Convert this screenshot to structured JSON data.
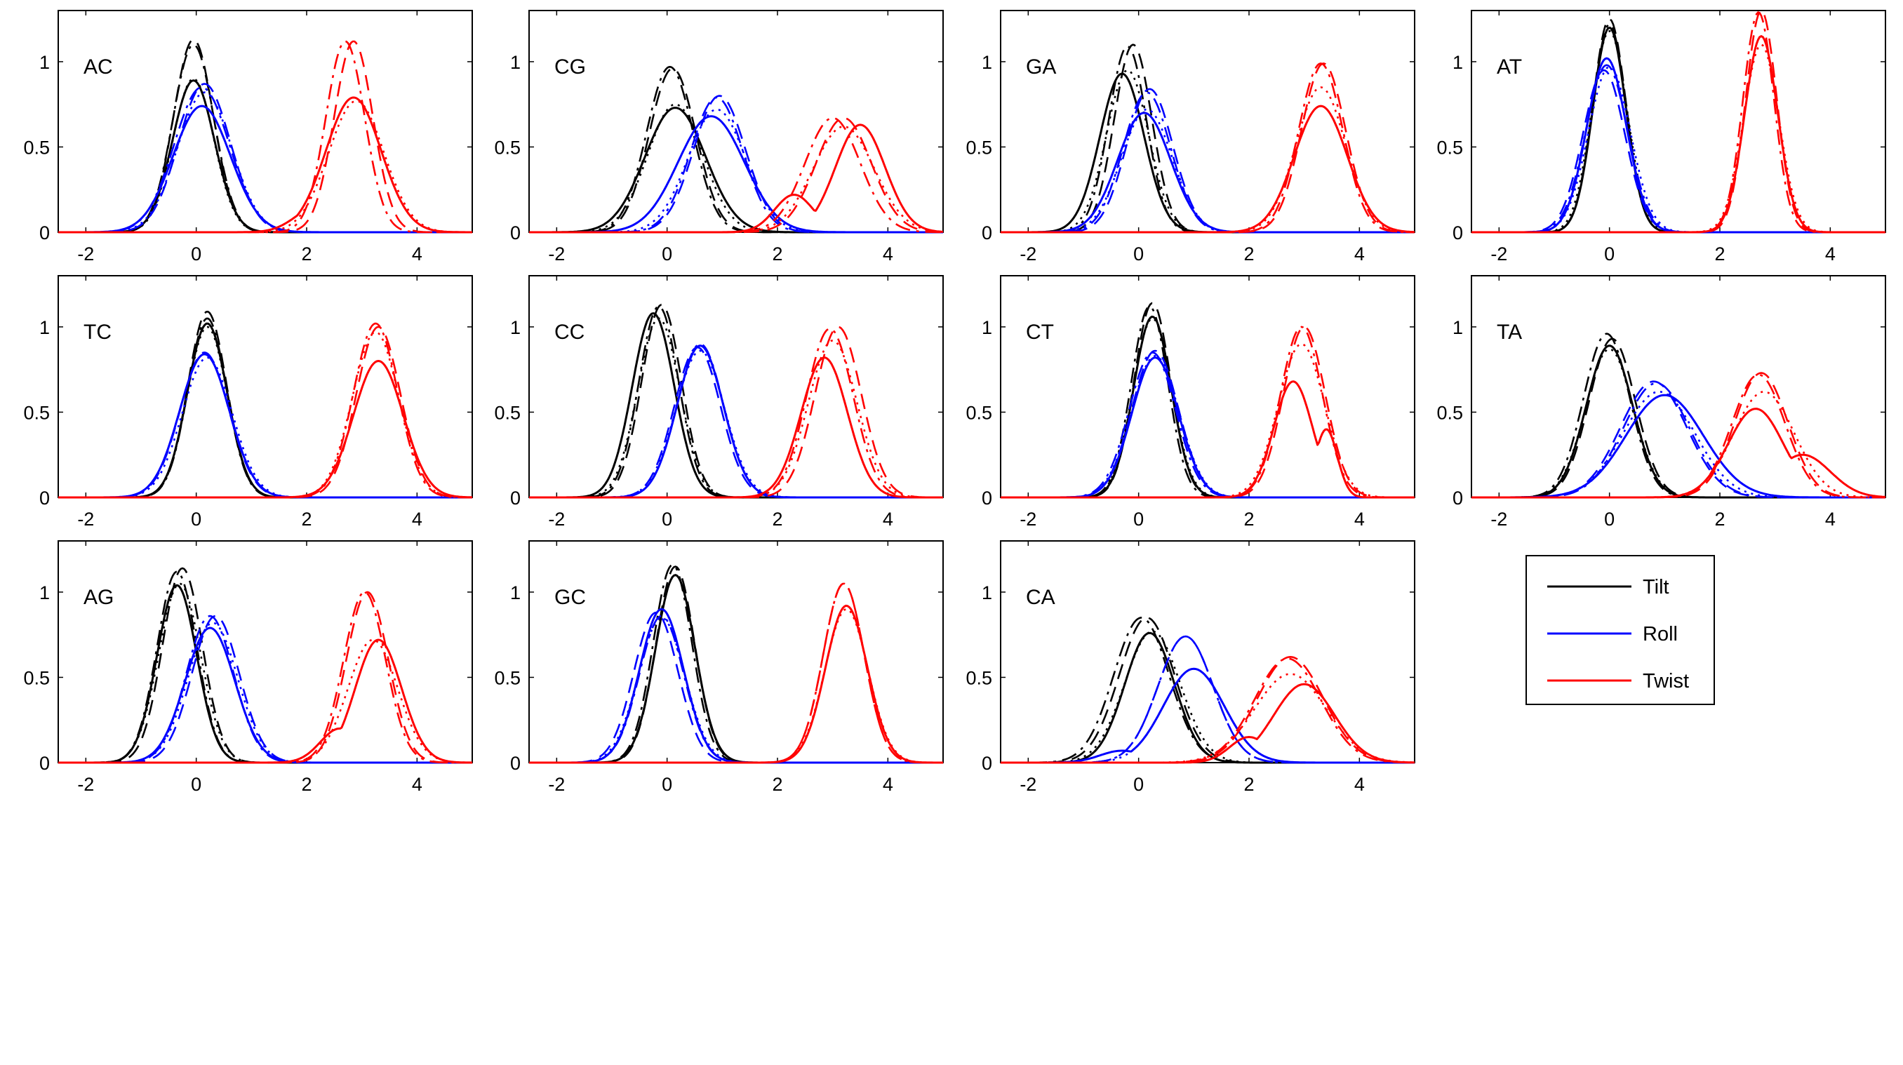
{
  "chart_data": {
    "type": "line",
    "description_axes": {
      "xlim": [
        -2.5,
        5
      ],
      "ylim": [
        0,
        1.3
      ],
      "xticks": [
        -2,
        0,
        2,
        4
      ],
      "yticks": [
        0,
        0.5,
        1
      ],
      "xtick_labels": [
        "-2",
        "0",
        "2",
        "4"
      ],
      "ytick_labels": [
        "0",
        "0.5",
        "1"
      ],
      "grid": false
    },
    "colors": {
      "Tilt": "#000000",
      "Roll": "#0000ff",
      "Twist": "#ff0000"
    },
    "line_styles": [
      "solid",
      "dashed",
      "dashdot",
      "dotted"
    ],
    "legend": {
      "entries": [
        "Tilt",
        "Roll",
        "Twist"
      ],
      "placement": "grid position row 3, column 4"
    },
    "panels": [
      {
        "label": "AC",
        "Tilt": [
          {
            "c": -0.05,
            "s": 0.38,
            "h": 0.89
          },
          {
            "c": -0.05,
            "s": 0.36,
            "h": 1.13
          },
          {
            "c": -0.05,
            "s": 0.37,
            "h": 1.1
          },
          {
            "c": -0.05,
            "s": 0.37,
            "h": 0.9
          }
        ],
        "Roll": [
          {
            "c": 0.1,
            "s": 0.52,
            "h": 0.74
          },
          {
            "c": 0.15,
            "s": 0.47,
            "h": 0.87
          },
          {
            "c": 0.1,
            "s": 0.5,
            "h": 0.85
          },
          {
            "c": 0.15,
            "s": 0.49,
            "h": 0.82
          }
        ],
        "Twist": [
          {
            "c": 2.85,
            "s": 0.5,
            "h": 0.79,
            "sh": {
              "c": 2.2,
              "s": 0.4,
              "h": 0.15
            }
          },
          {
            "c": 2.85,
            "s": 0.35,
            "h": 1.12
          },
          {
            "c": 2.7,
            "s": 0.35,
            "h": 1.12
          },
          {
            "c": 2.9,
            "s": 0.5,
            "h": 0.77
          }
        ]
      },
      {
        "label": "CG",
        "Tilt": [
          {
            "c": 0.15,
            "s": 0.55,
            "h": 0.73
          },
          {
            "c": 0.1,
            "s": 0.42,
            "h": 0.96
          },
          {
            "c": 0.05,
            "s": 0.42,
            "h": 0.97
          },
          {
            "c": 0.15,
            "s": 0.5,
            "h": 0.75
          }
        ],
        "Roll": [
          {
            "c": 0.8,
            "s": 0.6,
            "h": 0.68
          },
          {
            "c": 0.95,
            "s": 0.47,
            "h": 0.8
          },
          {
            "c": 0.9,
            "s": 0.47,
            "h": 0.79
          },
          {
            "c": 0.9,
            "s": 0.52,
            "h": 0.72
          }
        ],
        "Twist": [
          {
            "c": 3.5,
            "s": 0.45,
            "h": 0.63,
            "sh": {
              "c": 2.3,
              "s": 0.35,
              "h": 0.22
            }
          },
          {
            "c": 3.2,
            "s": 0.5,
            "h": 0.67
          },
          {
            "c": 3.0,
            "s": 0.5,
            "h": 0.67
          },
          {
            "c": 3.2,
            "s": 0.55,
            "h": 0.62
          }
        ]
      },
      {
        "label": "GA",
        "Tilt": [
          {
            "c": -0.3,
            "s": 0.4,
            "h": 0.93
          },
          {
            "c": -0.1,
            "s": 0.34,
            "h": 1.1
          },
          {
            "c": -0.2,
            "s": 0.34,
            "h": 1.09
          },
          {
            "c": -0.2,
            "s": 0.38,
            "h": 0.95
          }
        ],
        "Roll": [
          {
            "c": 0.1,
            "s": 0.48,
            "h": 0.7
          },
          {
            "c": 0.2,
            "s": 0.42,
            "h": 0.84
          },
          {
            "c": 0.15,
            "s": 0.43,
            "h": 0.82
          },
          {
            "c": 0.15,
            "s": 0.46,
            "h": 0.72
          }
        ],
        "Twist": [
          {
            "c": 3.3,
            "s": 0.48,
            "h": 0.74
          },
          {
            "c": 3.35,
            "s": 0.4,
            "h": 0.99
          },
          {
            "c": 3.3,
            "s": 0.4,
            "h": 0.99
          },
          {
            "c": 3.3,
            "s": 0.45,
            "h": 0.85
          }
        ]
      },
      {
        "label": "AT",
        "Tilt": [
          {
            "c": 0.0,
            "s": 0.3,
            "h": 1.2
          },
          {
            "c": 0.0,
            "s": 0.3,
            "h": 1.25
          },
          {
            "c": 0.0,
            "s": 0.3,
            "h": 1.22
          },
          {
            "c": 0.0,
            "s": 0.32,
            "h": 1.18
          }
        ],
        "Roll": [
          {
            "c": -0.05,
            "s": 0.36,
            "h": 1.02
          },
          {
            "c": -0.1,
            "s": 0.38,
            "h": 0.95
          },
          {
            "c": -0.05,
            "s": 0.38,
            "h": 0.98
          },
          {
            "c": 0.0,
            "s": 0.38,
            "h": 0.97
          }
        ],
        "Twist": [
          {
            "c": 2.75,
            "s": 0.3,
            "h": 1.15
          },
          {
            "c": 2.75,
            "s": 0.28,
            "h": 1.3
          },
          {
            "c": 2.7,
            "s": 0.28,
            "h": 1.29
          },
          {
            "c": 2.75,
            "s": 0.32,
            "h": 1.1
          }
        ]
      },
      {
        "label": "TC",
        "Tilt": [
          {
            "c": 0.2,
            "s": 0.36,
            "h": 1.02
          },
          {
            "c": 0.2,
            "s": 0.35,
            "h": 1.09
          },
          {
            "c": 0.2,
            "s": 0.35,
            "h": 1.05
          },
          {
            "c": 0.2,
            "s": 0.36,
            "h": 1.0
          }
        ],
        "Roll": [
          {
            "c": 0.15,
            "s": 0.45,
            "h": 0.84
          },
          {
            "c": 0.15,
            "s": 0.44,
            "h": 0.85
          },
          {
            "c": 0.15,
            "s": 0.45,
            "h": 0.84
          },
          {
            "c": 0.2,
            "s": 0.45,
            "h": 0.82
          }
        ],
        "Twist": [
          {
            "c": 3.3,
            "s": 0.45,
            "h": 0.8
          },
          {
            "c": 3.3,
            "s": 0.4,
            "h": 1.0
          },
          {
            "c": 3.25,
            "s": 0.4,
            "h": 1.02
          },
          {
            "c": 3.25,
            "s": 0.42,
            "h": 0.97
          }
        ]
      },
      {
        "label": "CC",
        "Tilt": [
          {
            "c": -0.25,
            "s": 0.38,
            "h": 1.08
          },
          {
            "c": -0.1,
            "s": 0.36,
            "h": 1.13
          },
          {
            "c": -0.15,
            "s": 0.36,
            "h": 1.12
          },
          {
            "c": -0.15,
            "s": 0.38,
            "h": 1.05
          }
        ],
        "Roll": [
          {
            "c": 0.6,
            "s": 0.42,
            "h": 0.89
          },
          {
            "c": 0.55,
            "s": 0.42,
            "h": 0.88
          },
          {
            "c": 0.6,
            "s": 0.42,
            "h": 0.9
          },
          {
            "c": 0.6,
            "s": 0.44,
            "h": 0.86
          }
        ],
        "Twist": [
          {
            "c": 2.85,
            "s": 0.42,
            "h": 0.82
          },
          {
            "c": 3.1,
            "s": 0.42,
            "h": 1.0
          },
          {
            "c": 2.95,
            "s": 0.42,
            "h": 0.99
          },
          {
            "c": 3.0,
            "s": 0.44,
            "h": 0.92
          }
        ]
      },
      {
        "label": "CT",
        "Tilt": [
          {
            "c": 0.25,
            "s": 0.34,
            "h": 1.06
          },
          {
            "c": 0.25,
            "s": 0.33,
            "h": 1.14
          },
          {
            "c": 0.2,
            "s": 0.33,
            "h": 1.12
          },
          {
            "c": 0.25,
            "s": 0.35,
            "h": 1.05
          }
        ],
        "Roll": [
          {
            "c": 0.3,
            "s": 0.42,
            "h": 0.82
          },
          {
            "c": 0.3,
            "s": 0.42,
            "h": 0.86
          },
          {
            "c": 0.25,
            "s": 0.42,
            "h": 0.85
          },
          {
            "c": 0.3,
            "s": 0.43,
            "h": 0.83
          }
        ],
        "Twist": [
          {
            "c": 2.8,
            "s": 0.35,
            "h": 0.68,
            "sh": {
              "c": 3.4,
              "s": 0.2,
              "h": 0.4
            }
          },
          {
            "c": 3.0,
            "s": 0.38,
            "h": 1.0
          },
          {
            "c": 2.95,
            "s": 0.38,
            "h": 1.0
          },
          {
            "c": 2.95,
            "s": 0.42,
            "h": 0.9
          }
        ]
      },
      {
        "label": "TA",
        "Tilt": [
          {
            "c": 0.0,
            "s": 0.42,
            "h": 0.89
          },
          {
            "c": 0.05,
            "s": 0.42,
            "h": 0.93
          },
          {
            "c": -0.05,
            "s": 0.42,
            "h": 0.96
          },
          {
            "c": 0.0,
            "s": 0.43,
            "h": 0.87
          }
        ],
        "Roll": [
          {
            "c": 1.0,
            "s": 0.7,
            "h": 0.6
          },
          {
            "c": 0.8,
            "s": 0.6,
            "h": 0.68
          },
          {
            "c": 0.85,
            "s": 0.6,
            "h": 0.67
          },
          {
            "c": 0.9,
            "s": 0.65,
            "h": 0.62
          }
        ],
        "Twist": [
          {
            "c": 2.65,
            "s": 0.5,
            "h": 0.52,
            "sh": {
              "c": 3.5,
              "s": 0.5,
              "h": 0.25
            }
          },
          {
            "c": 2.75,
            "s": 0.48,
            "h": 0.73
          },
          {
            "c": 2.7,
            "s": 0.48,
            "h": 0.72
          },
          {
            "c": 2.8,
            "s": 0.55,
            "h": 0.62
          }
        ]
      },
      {
        "label": "AG",
        "Tilt": [
          {
            "c": -0.35,
            "s": 0.36,
            "h": 1.04
          },
          {
            "c": -0.25,
            "s": 0.36,
            "h": 1.14
          },
          {
            "c": -0.35,
            "s": 0.36,
            "h": 1.12
          },
          {
            "c": -0.3,
            "s": 0.38,
            "h": 1.05
          }
        ],
        "Roll": [
          {
            "c": 0.25,
            "s": 0.45,
            "h": 0.79
          },
          {
            "c": 0.35,
            "s": 0.43,
            "h": 0.86
          },
          {
            "c": 0.25,
            "s": 0.43,
            "h": 0.86
          },
          {
            "c": 0.3,
            "s": 0.45,
            "h": 0.82
          }
        ],
        "Twist": [
          {
            "c": 3.3,
            "s": 0.42,
            "h": 0.72,
            "sh": {
              "c": 2.6,
              "s": 0.35,
              "h": 0.2
            }
          },
          {
            "c": 3.1,
            "s": 0.38,
            "h": 1.0
          },
          {
            "c": 3.05,
            "s": 0.38,
            "h": 1.0
          },
          {
            "c": 3.2,
            "s": 0.45,
            "h": 0.72
          }
        ]
      },
      {
        "label": "GC",
        "Tilt": [
          {
            "c": 0.15,
            "s": 0.36,
            "h": 1.1
          },
          {
            "c": 0.15,
            "s": 0.35,
            "h": 1.15
          },
          {
            "c": 0.1,
            "s": 0.35,
            "h": 1.16
          },
          {
            "c": 0.15,
            "s": 0.36,
            "h": 1.1
          }
        ],
        "Roll": [
          {
            "c": -0.1,
            "s": 0.4,
            "h": 0.9
          },
          {
            "c": -0.2,
            "s": 0.4,
            "h": 0.88
          },
          {
            "c": -0.1,
            "s": 0.4,
            "h": 0.86
          },
          {
            "c": -0.1,
            "s": 0.42,
            "h": 0.85
          }
        ],
        "Twist": [
          {
            "c": 3.25,
            "s": 0.38,
            "h": 0.92
          },
          {
            "c": 3.2,
            "s": 0.37,
            "h": 1.05
          },
          {
            "c": 3.2,
            "s": 0.37,
            "h": 1.05
          },
          {
            "c": 3.25,
            "s": 0.39,
            "h": 0.9
          }
        ]
      },
      {
        "label": "CA",
        "Tilt": [
          {
            "c": 0.2,
            "s": 0.45,
            "h": 0.76
          },
          {
            "c": 0.15,
            "s": 0.5,
            "h": 0.85
          },
          {
            "c": 0.05,
            "s": 0.5,
            "h": 0.85
          },
          {
            "c": 0.25,
            "s": 0.5,
            "h": 0.77
          }
        ],
        "Roll": [
          {
            "c": 1.0,
            "s": 0.55,
            "h": 0.55,
            "sh": {
              "c": -0.3,
              "s": 0.4,
              "h": 0.07
            }
          },
          {
            "c": 0.85,
            "s": 0.5,
            "h": 0.74
          },
          {
            "c": 0.85,
            "s": 0.5,
            "h": 0.74
          },
          {
            "c": 1.0,
            "s": 0.55,
            "h": 0.55
          }
        ],
        "Twist": [
          {
            "c": 3.0,
            "s": 0.55,
            "h": 0.46,
            "sh": {
              "c": 2.0,
              "s": 0.35,
              "h": 0.15
            }
          },
          {
            "c": 2.75,
            "s": 0.6,
            "h": 0.62
          },
          {
            "c": 2.7,
            "s": 0.6,
            "h": 0.61
          },
          {
            "c": 2.75,
            "s": 0.65,
            "h": 0.52
          }
        ]
      }
    ]
  }
}
